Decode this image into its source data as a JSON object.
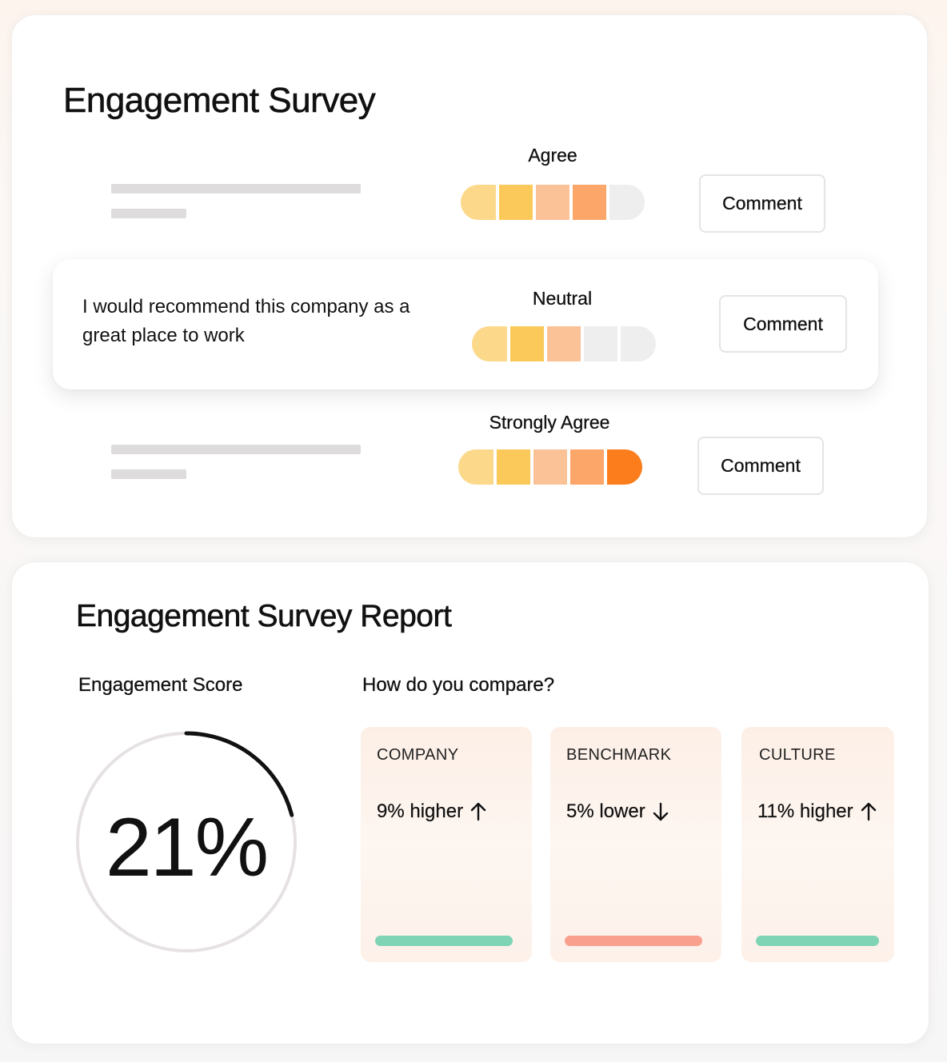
{
  "survey": {
    "title": "Engagement Survey",
    "rows": [
      {
        "answer": "Agree",
        "level": 4,
        "comment_label": "Comment"
      },
      {
        "question": "I would recommend this company as a great place to work",
        "answer": "Neutral",
        "level": 3,
        "comment_label": "Comment"
      },
      {
        "answer": "Strongly Agree",
        "level": 5,
        "comment_label": "Comment"
      }
    ],
    "scale_max": 5
  },
  "report": {
    "title": "Engagement Survey Report",
    "score_label": "Engagement Score",
    "score_value": "21%",
    "score_fraction": 0.21,
    "compare_heading": "How do you compare?",
    "comparisons": [
      {
        "name": "COMPANY",
        "value": "9% higher",
        "direction": "up",
        "icon": "arrow-up-icon",
        "bar_color": "#7fd4b6"
      },
      {
        "name": "BENCHMARK",
        "value": "5% lower",
        "direction": "down",
        "icon": "arrow-down-icon",
        "bar_color": "#f9a08e"
      },
      {
        "name": "CULTURE",
        "value": "11% higher",
        "direction": "up",
        "icon": "arrow-up-icon",
        "bar_color": "#7fd4b6"
      }
    ]
  }
}
